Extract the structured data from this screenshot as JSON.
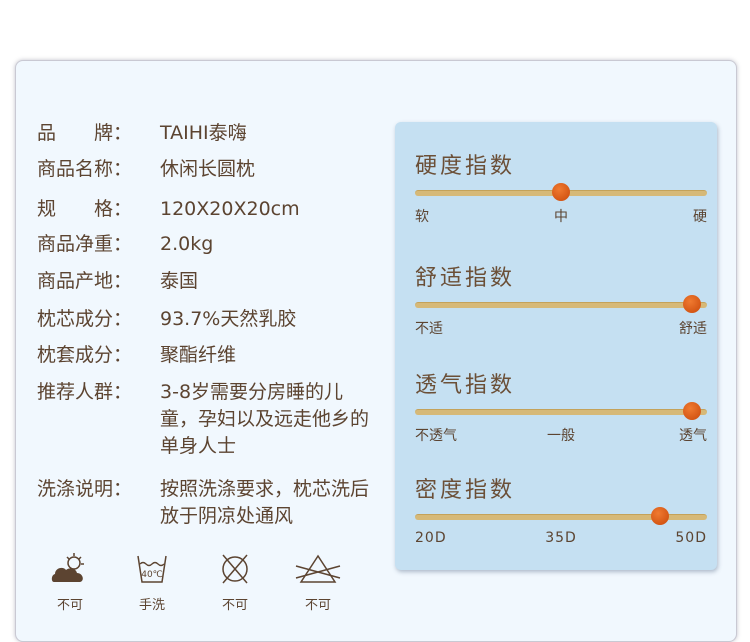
{
  "specs": [
    {
      "label": "品　　牌：",
      "value": "TAIHI泰嗨"
    },
    {
      "label": "商品名称：",
      "value": "休闲长圆枕"
    },
    {
      "label": "规　　格：",
      "value": "120X20X20cm"
    },
    {
      "label": "商品净重：",
      "value": "2.0kg"
    },
    {
      "label": "商品产地：",
      "value": "泰国"
    },
    {
      "label": "枕芯成分：",
      "value": "93.7%天然乳胶"
    },
    {
      "label": "枕套成分：",
      "value": "聚酯纤维"
    },
    {
      "label": "推荐人群：",
      "value": "3-8岁需要分房睡的儿童，孕妇以及远走他乡的单身人士"
    },
    {
      "label": "洗涤说明：",
      "value": "按照洗涤要求，枕芯洗后放于阴凉处通风"
    }
  ],
  "indices": [
    {
      "title": "硬度指数",
      "level": 0.5,
      "ticks": [
        "软",
        "中",
        "硬"
      ]
    },
    {
      "title": "舒适指数",
      "level": 0.95,
      "ticks": [
        "不适",
        "舒适"
      ]
    },
    {
      "title": "透气指数",
      "level": 0.95,
      "ticks": [
        "不透气",
        "一般",
        "透气"
      ]
    },
    {
      "title": "密度指数",
      "level": 0.84,
      "ticks": [
        "20D",
        "35D",
        "50D"
      ]
    }
  ],
  "care": [
    {
      "icon": "no-sun-dry-icon",
      "label": "不可"
    },
    {
      "icon": "hand-wash-40c-icon",
      "label": "手洗",
      "temp": "40℃"
    },
    {
      "icon": "no-tumble-dry-icon",
      "label": "不可"
    },
    {
      "icon": "no-bleach-icon",
      "label": "不可"
    }
  ],
  "colors": {
    "text": "#5c4431",
    "panel": "#c5e0f2",
    "track": "#d6b978",
    "knob": "#e0601a"
  }
}
